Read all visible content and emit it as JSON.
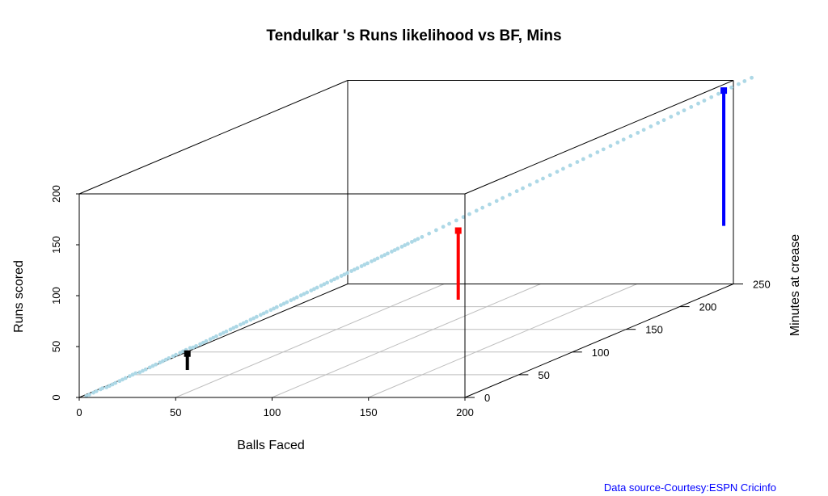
{
  "chart_data": {
    "type": "scatter",
    "projection": "3d-box",
    "title": "Tendulkar 's Runs likelihood vs BF, Mins",
    "xlabel": "Balls Faced",
    "ylabel": "Minutes at crease",
    "zlabel": "Runs scored",
    "xlim": [
      0,
      200
    ],
    "ylim": [
      0,
      250
    ],
    "zlim": [
      0,
      200
    ],
    "xticks": [
      "0",
      "50",
      "100",
      "150",
      "200"
    ],
    "yticks": [
      "0",
      "50",
      "100",
      "150",
      "200",
      "250"
    ],
    "zticks": [
      "0",
      "50",
      "100",
      "150",
      "200"
    ],
    "grid": "x-y floor grid",
    "point_color": "#add8e6",
    "highlights": [
      {
        "color": "#000000",
        "bf": 31,
        "mins": 45,
        "runs": 23
      },
      {
        "color": "#ff0000",
        "bf": 113,
        "mins": 150,
        "runs": 97
      },
      {
        "color": "#0000ff",
        "bf": 195,
        "mins": 250,
        "runs": 190
      }
    ],
    "points": [
      [
        2,
        3,
        0
      ],
      [
        3,
        4,
        1
      ],
      [
        4,
        6,
        2
      ],
      [
        5,
        7,
        3
      ],
      [
        6,
        9,
        4
      ],
      [
        7,
        9,
        5
      ],
      [
        8,
        11,
        5
      ],
      [
        9,
        12,
        6
      ],
      [
        10,
        13,
        7
      ],
      [
        11,
        14,
        8
      ],
      [
        12,
        16,
        9
      ],
      [
        13,
        17,
        10
      ],
      [
        14,
        18,
        11
      ],
      [
        15,
        20,
        12
      ],
      [
        16,
        21,
        13
      ],
      [
        17,
        22,
        14
      ],
      [
        18,
        24,
        14
      ],
      [
        19,
        25,
        15
      ],
      [
        20,
        26,
        16
      ],
      [
        21,
        28,
        17
      ],
      [
        22,
        29,
        18
      ],
      [
        23,
        30,
        19
      ],
      [
        24,
        32,
        20
      ],
      [
        25,
        33,
        21
      ],
      [
        26,
        34,
        22
      ],
      [
        27,
        35,
        23
      ],
      [
        28,
        37,
        24
      ],
      [
        29,
        38,
        25
      ],
      [
        30,
        40,
        26
      ],
      [
        31,
        41,
        27
      ],
      [
        32,
        42,
        28
      ],
      [
        33,
        44,
        29
      ],
      [
        34,
        45,
        29
      ],
      [
        35,
        46,
        30
      ],
      [
        36,
        48,
        31
      ],
      [
        37,
        49,
        32
      ],
      [
        38,
        50,
        33
      ],
      [
        39,
        52,
        34
      ],
      [
        40,
        53,
        35
      ],
      [
        41,
        54,
        36
      ],
      [
        42,
        56,
        37
      ],
      [
        43,
        57,
        38
      ],
      [
        44,
        58,
        39
      ],
      [
        45,
        60,
        40
      ],
      [
        46,
        61,
        41
      ],
      [
        47,
        62,
        42
      ],
      [
        48,
        64,
        43
      ],
      [
        49,
        65,
        44
      ],
      [
        50,
        66,
        45
      ],
      [
        51,
        68,
        46
      ],
      [
        52,
        69,
        47
      ],
      [
        53,
        70,
        48
      ],
      [
        54,
        72,
        49
      ],
      [
        55,
        73,
        50
      ],
      [
        56,
        74,
        51
      ],
      [
        57,
        76,
        52
      ],
      [
        58,
        77,
        53
      ],
      [
        59,
        78,
        54
      ],
      [
        60,
        80,
        55
      ],
      [
        61,
        81,
        56
      ],
      [
        62,
        82,
        57
      ],
      [
        63,
        84,
        58
      ],
      [
        64,
        85,
        59
      ],
      [
        65,
        86,
        60
      ],
      [
        66,
        88,
        61
      ],
      [
        67,
        89,
        62
      ],
      [
        68,
        90,
        63
      ],
      [
        69,
        92,
        64
      ],
      [
        70,
        93,
        65
      ],
      [
        71,
        94,
        66
      ],
      [
        72,
        96,
        67
      ],
      [
        73,
        97,
        68
      ],
      [
        74,
        98,
        69
      ],
      [
        75,
        100,
        70
      ],
      [
        76,
        101,
        71
      ],
      [
        77,
        102,
        72
      ],
      [
        78,
        104,
        73
      ],
      [
        79,
        105,
        74
      ],
      [
        80,
        106,
        75
      ],
      [
        81,
        108,
        76
      ],
      [
        82,
        109,
        77
      ],
      [
        83,
        110,
        78
      ],
      [
        84,
        112,
        79
      ],
      [
        85,
        113,
        80
      ],
      [
        86,
        114,
        81
      ],
      [
        87,
        116,
        82
      ],
      [
        88,
        117,
        83
      ],
      [
        89,
        118,
        84
      ],
      [
        90,
        120,
        85
      ],
      [
        91,
        121,
        86
      ],
      [
        92,
        122,
        87
      ],
      [
        93,
        124,
        88
      ],
      [
        94,
        125,
        89
      ],
      [
        95,
        126,
        90
      ],
      [
        96,
        128,
        91
      ],
      [
        97,
        129,
        92
      ],
      [
        98,
        130,
        93
      ],
      [
        99,
        132,
        94
      ],
      [
        100,
        133,
        95
      ],
      [
        101,
        134,
        96
      ],
      [
        102,
        136,
        97
      ],
      [
        104,
        139,
        99
      ],
      [
        106,
        142,
        101
      ],
      [
        108,
        145,
        103
      ],
      [
        110,
        147,
        105
      ],
      [
        112,
        150,
        107
      ],
      [
        114,
        153,
        109
      ],
      [
        116,
        155,
        111
      ],
      [
        118,
        158,
        113
      ],
      [
        120,
        160,
        115
      ],
      [
        122,
        163,
        117
      ],
      [
        124,
        166,
        119
      ],
      [
        126,
        168,
        121
      ],
      [
        128,
        171,
        123
      ],
      [
        130,
        174,
        125
      ],
      [
        132,
        176,
        127
      ],
      [
        134,
        179,
        129
      ],
      [
        136,
        182,
        131
      ],
      [
        138,
        184,
        133
      ],
      [
        140,
        187,
        135
      ],
      [
        142,
        190,
        137
      ],
      [
        144,
        192,
        139
      ],
      [
        146,
        195,
        141
      ],
      [
        148,
        198,
        143
      ],
      [
        150,
        200,
        145
      ],
      [
        152,
        203,
        147
      ],
      [
        154,
        206,
        149
      ],
      [
        156,
        208,
        151
      ],
      [
        158,
        211,
        153
      ],
      [
        160,
        214,
        155
      ],
      [
        162,
        216,
        157
      ],
      [
        164,
        219,
        159
      ],
      [
        166,
        222,
        161
      ],
      [
        168,
        224,
        163
      ],
      [
        170,
        227,
        165
      ],
      [
        172,
        230,
        167
      ],
      [
        174,
        232,
        169
      ],
      [
        176,
        235,
        171
      ],
      [
        178,
        238,
        173
      ],
      [
        180,
        240,
        175
      ],
      [
        182,
        243,
        177
      ],
      [
        184,
        246,
        179
      ],
      [
        186,
        248,
        181
      ],
      [
        188,
        251,
        183
      ],
      [
        190,
        254,
        185
      ],
      [
        192,
        256,
        187
      ],
      [
        194,
        259,
        189
      ],
      [
        196,
        262,
        191
      ],
      [
        198,
        264,
        193
      ],
      [
        200,
        267,
        195
      ]
    ]
  },
  "source_note": "Data source-Courtesy:ESPN Cricinfo"
}
